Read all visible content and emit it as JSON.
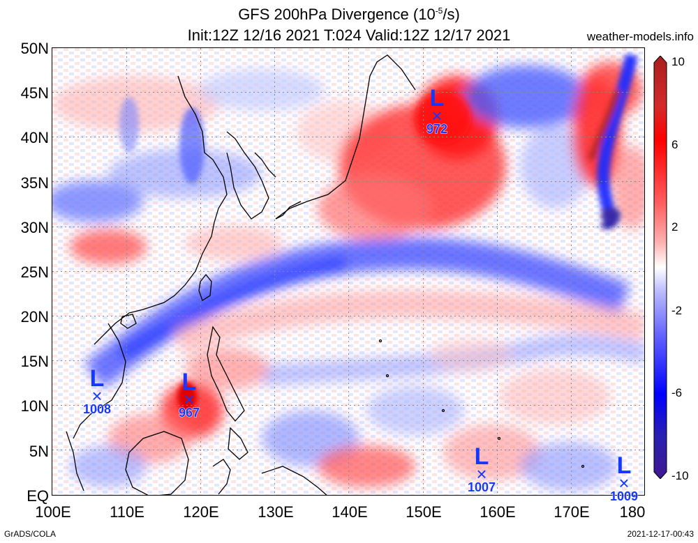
{
  "title_line1": "GFS 200hPa Divergence (10",
  "title_unit_exp": "-5",
  "title_unit_tail": "/s)",
  "title_line2": "Init:12Z 12/16 2021 T:024 Valid:12Z 12/17 2021",
  "site": "weather-models.info",
  "footer_left": "GrADS/COLA",
  "footer_right": "2021-12-17-00:43",
  "lat_labels": [
    "50N",
    "45N",
    "40N",
    "35N",
    "30N",
    "25N",
    "20N",
    "15N",
    "10N",
    "5N",
    "EQ"
  ],
  "lon_labels": [
    "100E",
    "110E",
    "120E",
    "130E",
    "140E",
    "150E",
    "160E",
    "170E",
    "180"
  ],
  "colorbar": {
    "ticks": [
      "10",
      "6",
      "2",
      "-2",
      "-6",
      "-10"
    ],
    "colors": [
      "#a81f1f",
      "#d42a2a",
      "#ff0000",
      "#ff6060",
      "#ffb0b0",
      "#ffffff",
      "#b8b8ff",
      "#6464ff",
      "#0000ff",
      "#2a20b0",
      "#401890"
    ]
  },
  "lows": [
    {
      "label": "L",
      "symbol": "×",
      "pressure": "972"
    },
    {
      "label": "L",
      "symbol": "×",
      "pressure": "1008"
    },
    {
      "label": "L",
      "symbol": "×",
      "pressure": "967"
    },
    {
      "label": "L",
      "symbol": "×",
      "pressure": "1007"
    },
    {
      "label": "L",
      "symbol": "×",
      "pressure": "1009"
    }
  ]
}
